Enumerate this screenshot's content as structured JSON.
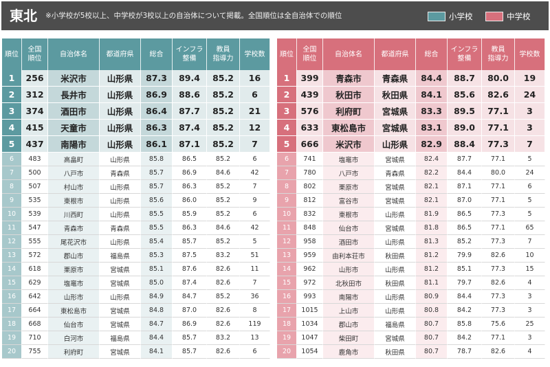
{
  "header": {
    "title": "東北",
    "note": "※小学校が5校以上、中学校が3校以上の自治体について掲載。全国順位は全自治体での順位",
    "legend": [
      {
        "label": "小学校",
        "color": "#5c9aa0"
      },
      {
        "label": "中学校",
        "color": "#d7707c"
      }
    ]
  },
  "columns": [
    {
      "key": "rank",
      "lines": [
        "順位"
      ]
    },
    {
      "key": "national",
      "lines": [
        "全国",
        "順位"
      ]
    },
    {
      "key": "name",
      "lines": [
        "自治体名"
      ]
    },
    {
      "key": "pref",
      "lines": [
        "都道府県"
      ]
    },
    {
      "key": "total",
      "lines": [
        "総合"
      ]
    },
    {
      "key": "infra",
      "lines": [
        "インフラ",
        "整備"
      ]
    },
    {
      "key": "teacher",
      "lines": [
        "教員",
        "指導力"
      ]
    },
    {
      "key": "schools",
      "lines": [
        "学校数"
      ]
    }
  ],
  "elementary": [
    [
      "1",
      "256",
      "米沢市",
      "山形県",
      "87.3",
      "89.4",
      "85.2",
      "16"
    ],
    [
      "2",
      "312",
      "長井市",
      "山形県",
      "86.9",
      "88.6",
      "85.2",
      "6"
    ],
    [
      "3",
      "374",
      "酒田市",
      "山形県",
      "86.4",
      "87.7",
      "85.2",
      "21"
    ],
    [
      "4",
      "415",
      "天童市",
      "山形県",
      "86.3",
      "87.4",
      "85.2",
      "12"
    ],
    [
      "5",
      "437",
      "南陽市",
      "山形県",
      "86.1",
      "87.1",
      "85.2",
      "7"
    ],
    [
      "6",
      "483",
      "高畠町",
      "山形県",
      "85.8",
      "86.5",
      "85.2",
      "6"
    ],
    [
      "7",
      "500",
      "八戸市",
      "青森県",
      "85.7",
      "86.9",
      "84.6",
      "42"
    ],
    [
      "8",
      "507",
      "村山市",
      "山形県",
      "85.7",
      "86.3",
      "85.2",
      "7"
    ],
    [
      "9",
      "535",
      "東根市",
      "山形県",
      "85.6",
      "86.0",
      "85.2",
      "9"
    ],
    [
      "10",
      "539",
      "川西町",
      "山形県",
      "85.5",
      "85.9",
      "85.2",
      "6"
    ],
    [
      "11",
      "547",
      "青森市",
      "青森県",
      "85.5",
      "86.3",
      "84.6",
      "42"
    ],
    [
      "12",
      "555",
      "尾花沢市",
      "山形県",
      "85.4",
      "85.7",
      "85.2",
      "5"
    ],
    [
      "13",
      "572",
      "郡山市",
      "福島県",
      "85.3",
      "87.5",
      "83.2",
      "51"
    ],
    [
      "14",
      "618",
      "栗原市",
      "宮城県",
      "85.1",
      "87.6",
      "82.6",
      "11"
    ],
    [
      "15",
      "629",
      "塩竈市",
      "宮城県",
      "85.0",
      "87.4",
      "82.6",
      "7"
    ],
    [
      "16",
      "642",
      "山形市",
      "山形県",
      "84.9",
      "84.7",
      "85.2",
      "36"
    ],
    [
      "17",
      "664",
      "東松島市",
      "宮城県",
      "84.8",
      "87.0",
      "82.6",
      "8"
    ],
    [
      "18",
      "668",
      "仙台市",
      "宮城県",
      "84.7",
      "86.9",
      "82.6",
      "119"
    ],
    [
      "19",
      "710",
      "白河市",
      "福島県",
      "84.4",
      "85.7",
      "83.2",
      "13"
    ],
    [
      "20",
      "755",
      "利府町",
      "宮城県",
      "84.1",
      "85.7",
      "82.6",
      "6"
    ]
  ],
  "junior_high": [
    [
      "1",
      "399",
      "青森市",
      "青森県",
      "84.4",
      "88.7",
      "80.0",
      "19"
    ],
    [
      "2",
      "439",
      "秋田市",
      "秋田県",
      "84.1",
      "85.6",
      "82.6",
      "24"
    ],
    [
      "3",
      "576",
      "利府町",
      "宮城県",
      "83.3",
      "89.5",
      "77.1",
      "3"
    ],
    [
      "4",
      "633",
      "東松島市",
      "宮城県",
      "83.1",
      "89.0",
      "77.1",
      "3"
    ],
    [
      "5",
      "666",
      "米沢市",
      "山形県",
      "82.9",
      "88.4",
      "77.3",
      "7"
    ],
    [
      "6",
      "741",
      "塩竈市",
      "宮城県",
      "82.4",
      "87.7",
      "77.1",
      "5"
    ],
    [
      "7",
      "780",
      "八戸市",
      "青森県",
      "82.2",
      "84.4",
      "80.0",
      "24"
    ],
    [
      "8",
      "802",
      "栗原市",
      "宮城県",
      "82.1",
      "87.1",
      "77.1",
      "6"
    ],
    [
      "9",
      "812",
      "富谷市",
      "宮城県",
      "82.1",
      "87.0",
      "77.1",
      "5"
    ],
    [
      "10",
      "832",
      "東根市",
      "山形県",
      "81.9",
      "86.5",
      "77.3",
      "5"
    ],
    [
      "11",
      "848",
      "仙台市",
      "宮城県",
      "81.8",
      "86.5",
      "77.1",
      "65"
    ],
    [
      "12",
      "958",
      "酒田市",
      "山形県",
      "81.3",
      "85.2",
      "77.3",
      "7"
    ],
    [
      "13",
      "959",
      "由利本荘市",
      "秋田県",
      "81.2",
      "79.9",
      "82.6",
      "10"
    ],
    [
      "14",
      "962",
      "山形市",
      "山形県",
      "81.2",
      "85.1",
      "77.3",
      "15"
    ],
    [
      "15",
      "972",
      "北秋田市",
      "秋田県",
      "81.1",
      "79.7",
      "82.6",
      "4"
    ],
    [
      "16",
      "993",
      "南陽市",
      "山形県",
      "80.9",
      "84.4",
      "77.3",
      "3"
    ],
    [
      "17",
      "1015",
      "上山市",
      "山形県",
      "80.8",
      "84.2",
      "77.3",
      "3"
    ],
    [
      "18",
      "1034",
      "郡山市",
      "福島県",
      "80.7",
      "85.8",
      "75.6",
      "25"
    ],
    [
      "19",
      "1047",
      "柴田町",
      "宮城県",
      "80.7",
      "84.2",
      "77.1",
      "3"
    ],
    [
      "20",
      "1054",
      "鹿角市",
      "秋田県",
      "80.7",
      "78.7",
      "82.6",
      "4"
    ]
  ]
}
